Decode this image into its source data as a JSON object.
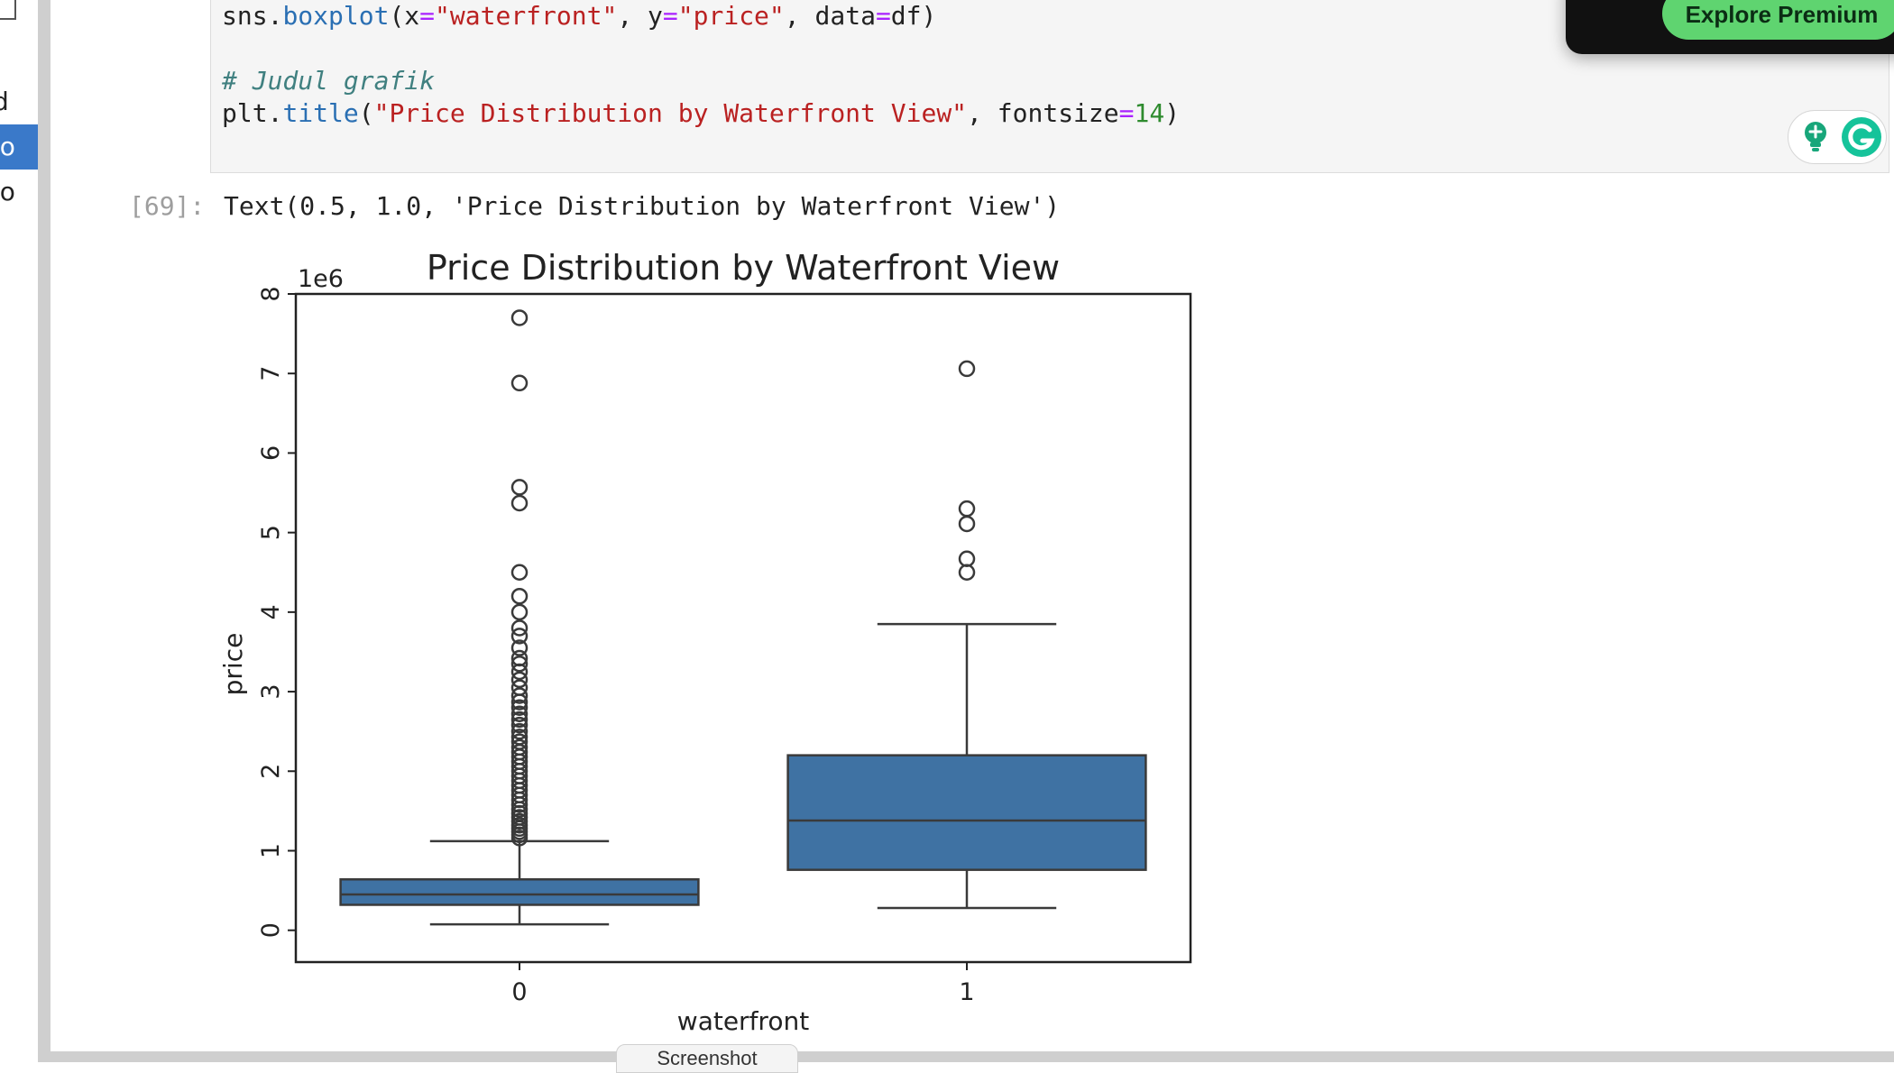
{
  "sidebar": {
    "items": [
      {
        "label": "d"
      },
      {
        "label": "lo"
      },
      {
        "label": "lo"
      }
    ]
  },
  "code_cell": {
    "line1": {
      "p1": "sns.",
      "p2": "boxplot",
      "p3": "(x",
      "p4": "=",
      "p5": "\"waterfront\"",
      "p6": ", y",
      "p7": "=",
      "p8": "\"price\"",
      "p9": ", data",
      "p10": "=",
      "p11": "df)"
    },
    "comment": "# Judul grafik",
    "line4": {
      "p1": "plt.",
      "p2": "title",
      "p3": "(",
      "p4": "\"Price Distribution by Waterfront View\"",
      "p5": ", fontsize",
      "p6": "=",
      "p7": "14",
      "p8": ")"
    }
  },
  "output": {
    "prompt": "[69]:",
    "text": "Text(0.5, 1.0, 'Price Distribution by Waterfront View')"
  },
  "premium": {
    "button_label": "Explore Premium"
  },
  "grammarly": {
    "icons": [
      "lightbulb-icon",
      "grammarly-g-icon"
    ]
  },
  "bottom_tab": {
    "label": "Screenshot"
  },
  "colors": {
    "box_fill": "#3f72a3",
    "accent_green": "#5fd470",
    "selected_blue": "#3a79c9"
  },
  "chart_data": {
    "type": "boxplot",
    "title": "Price Distribution by Waterfront View",
    "xlabel": "waterfront",
    "ylabel": "price",
    "scale_label": "1e6",
    "ylim": [
      -0.4,
      8.0
    ],
    "yticks": [
      0,
      1,
      2,
      3,
      4,
      5,
      6,
      7,
      8
    ],
    "categories": [
      "0",
      "1"
    ],
    "boxes": [
      {
        "category": "0",
        "whisker_low": 0.075,
        "q1": 0.32,
        "median": 0.45,
        "q3": 0.64,
        "whisker_high": 1.12,
        "outliers": [
          7.7,
          6.88,
          5.57,
          5.37,
          4.5,
          4.2,
          4.0,
          3.8,
          3.7,
          3.55,
          3.42,
          3.35,
          3.25,
          3.15,
          3.05,
          2.95,
          2.87,
          2.8,
          2.72,
          2.65,
          2.58,
          2.5,
          2.43,
          2.37,
          2.3,
          2.24,
          2.18,
          2.12,
          2.06,
          2.0,
          1.94,
          1.88,
          1.82,
          1.76,
          1.7,
          1.64,
          1.58,
          1.52,
          1.47,
          1.42,
          1.37,
          1.32,
          1.28,
          1.24,
          1.2,
          1.16
        ]
      },
      {
        "category": "1",
        "whisker_low": 0.28,
        "q1": 0.76,
        "median": 1.38,
        "q3": 2.2,
        "whisker_high": 3.85,
        "outliers": [
          7.06,
          5.3,
          5.11,
          4.67,
          4.5
        ]
      }
    ],
    "grid": false
  }
}
